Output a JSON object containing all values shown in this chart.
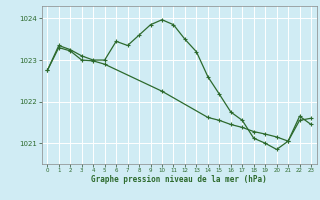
{
  "title": "Graphe pression niveau de la mer (hPa)",
  "bg_color": "#d0ecf4",
  "grid_color": "#b8dce8",
  "line_color": "#2d6a2d",
  "xlim": [
    -0.5,
    23.5
  ],
  "ylim": [
    1020.5,
    1024.3
  ],
  "yticks": [
    1021,
    1022,
    1023,
    1024
  ],
  "xticks": [
    0,
    1,
    2,
    3,
    4,
    5,
    6,
    7,
    8,
    9,
    10,
    11,
    12,
    13,
    14,
    15,
    16,
    17,
    18,
    19,
    20,
    21,
    22,
    23
  ],
  "s1_x": [
    0,
    1,
    2,
    3,
    4,
    5,
    6,
    7,
    8,
    9,
    10,
    11,
    12,
    13,
    14,
    15,
    16,
    17,
    18,
    19,
    20,
    21,
    22,
    23
  ],
  "s1_y": [
    1022.75,
    1023.35,
    1023.25,
    1023.1,
    1023.0,
    1023.0,
    1023.45,
    1023.35,
    1023.6,
    1023.85,
    1023.97,
    1023.85,
    1023.5,
    1023.2,
    1022.6,
    1022.18,
    1021.75,
    1021.55,
    1021.12,
    1021.0,
    1020.85,
    1021.05,
    1021.65,
    1021.45
  ],
  "s2_x": [
    0,
    1,
    2,
    3,
    4,
    5,
    10,
    14,
    15,
    16,
    17,
    18,
    19,
    20,
    21,
    22,
    23
  ],
  "s2_y": [
    1022.75,
    1023.3,
    1023.22,
    1023.0,
    1022.98,
    1022.9,
    1022.25,
    1021.62,
    1021.55,
    1021.45,
    1021.38,
    1021.28,
    1021.22,
    1021.15,
    1021.05,
    1021.55,
    1021.6
  ]
}
